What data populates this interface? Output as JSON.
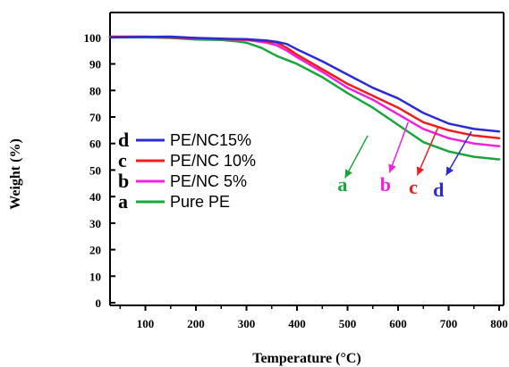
{
  "chart_data": {
    "type": "line",
    "xlabel": "Temperature (°C)",
    "ylabel": "Weight (%)",
    "xlim": [
      30,
      800
    ],
    "ylim": [
      0,
      105
    ],
    "xticks": [
      100,
      200,
      300,
      400,
      500,
      600,
      700,
      800
    ],
    "yticks": [
      0,
      10,
      20,
      30,
      40,
      50,
      60,
      70,
      80,
      90,
      100
    ],
    "grid": false,
    "legend_position": "middle-left",
    "series": [
      {
        "name": "PE/NC15%",
        "letter": "d",
        "color": "#2b2bd6",
        "x": [
          30,
          100,
          150,
          200,
          250,
          300,
          340,
          360,
          380,
          400,
          450,
          500,
          550,
          600,
          650,
          700,
          750,
          800
        ],
        "y": [
          100,
          100.2,
          100.3,
          99.8,
          99.5,
          99.3,
          98.8,
          98.3,
          97.5,
          95.5,
          91,
          86,
          81,
          77,
          71.5,
          67.5,
          65.5,
          64.5
        ]
      },
      {
        "name": "PE/NC 10%",
        "letter": "c",
        "color": "#ee1c1c",
        "x": [
          30,
          100,
          150,
          200,
          250,
          300,
          340,
          360,
          380,
          400,
          450,
          500,
          550,
          600,
          650,
          700,
          750,
          800
        ],
        "y": [
          100.3,
          100.3,
          100,
          99.8,
          99.4,
          99.2,
          98.5,
          98,
          96,
          93.5,
          88,
          82.5,
          78,
          73.5,
          68,
          65,
          63,
          62
        ]
      },
      {
        "name": "PE/NC 5%",
        "letter": "b",
        "color": "#ee22dd",
        "x": [
          30,
          100,
          150,
          200,
          250,
          300,
          340,
          360,
          380,
          400,
          450,
          500,
          550,
          600,
          650,
          700,
          750,
          800
        ],
        "y": [
          100.2,
          100.2,
          100,
          99.6,
          99.3,
          99,
          98,
          97,
          95,
          92.5,
          87,
          81,
          76.5,
          71,
          65.5,
          62,
          60,
          59
        ]
      },
      {
        "name": "Pure PE",
        "letter": "a",
        "color": "#1aa63c",
        "x": [
          30,
          100,
          150,
          200,
          250,
          280,
          300,
          330,
          360,
          400,
          450,
          500,
          550,
          600,
          650,
          700,
          750,
          800
        ],
        "y": [
          100,
          100,
          99.8,
          99.2,
          99,
          98.5,
          98,
          96,
          93,
          90,
          85,
          79,
          73.5,
          67,
          60.5,
          57,
          55,
          54
        ]
      }
    ],
    "annotations": [
      {
        "letter": "a",
        "color": "#1aa63c",
        "text_x": 490,
        "text_y": 42,
        "arrow_from": [
          540,
          63
        ],
        "arrow_to": [
          495,
          47
        ]
      },
      {
        "letter": "b",
        "color": "#ee22dd",
        "text_x": 575,
        "text_y": 42,
        "arrow_from": [
          620,
          68
        ],
        "arrow_to": [
          583,
          49
        ]
      },
      {
        "letter": "c",
        "color": "#ee1c1c",
        "text_x": 630,
        "text_y": 41,
        "arrow_from": [
          680,
          66.5
        ],
        "arrow_to": [
          638,
          48
        ]
      },
      {
        "letter": "d",
        "color": "#2b2bd6",
        "text_x": 680,
        "text_y": 40,
        "arrow_from": [
          745,
          64.5
        ],
        "arrow_to": [
          695,
          48
        ]
      }
    ]
  }
}
